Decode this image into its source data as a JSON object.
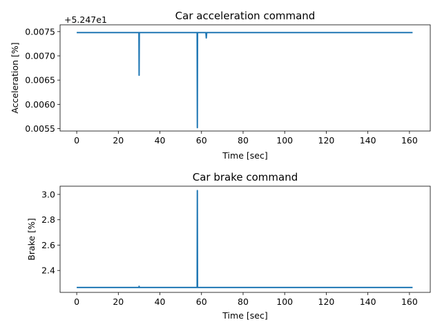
{
  "chart_data": [
    {
      "type": "line",
      "title": "Car acceleration command",
      "xlabel": "Time [sec]",
      "ylabel": "Acceleration [%]",
      "offset_label": "+5.247e1",
      "xlim": [
        -8,
        170
      ],
      "ylim": [
        0.00545,
        0.00764
      ],
      "xticks": [
        0,
        20,
        40,
        60,
        80,
        100,
        120,
        140,
        160
      ],
      "yticks": [
        0.0055,
        0.006,
        0.0065,
        0.007,
        0.0075
      ],
      "ytick_labels": [
        "0.0055",
        "0.0060",
        "0.0065",
        "0.0070",
        "0.0075"
      ],
      "grid": false,
      "color": "#1f77b4",
      "series": [
        {
          "x": [
            0,
            29.9,
            30.0,
            30.1,
            30.2,
            57.9,
            58.0,
            58.1,
            58.2,
            62.1,
            62.3,
            62.5,
            62.7,
            161.5
          ],
          "y": [
            0.00748,
            0.00748,
            0.0066,
            0.00748,
            0.00748,
            0.00748,
            0.00552,
            0.00748,
            0.00748,
            0.00748,
            0.00737,
            0.00748,
            0.00748,
            0.00748
          ]
        }
      ]
    },
    {
      "type": "line",
      "title": "Car brake command",
      "xlabel": "Time [sec]",
      "ylabel": "Brake [%]",
      "xlim": [
        -8,
        170
      ],
      "ylim": [
        2.227,
        3.065
      ],
      "xticks": [
        0,
        20,
        40,
        60,
        80,
        100,
        120,
        140,
        160
      ],
      "yticks": [
        2.4,
        2.6,
        2.8,
        3.0
      ],
      "ytick_labels": [
        "2.4",
        "2.6",
        "2.8",
        "3.0"
      ],
      "grid": false,
      "color": "#1f77b4",
      "series": [
        {
          "x": [
            0,
            29.9,
            30.0,
            30.1,
            57.9,
            58.0,
            58.1,
            161.5
          ],
          "y": [
            2.266,
            2.266,
            2.275,
            2.266,
            2.266,
            3.03,
            2.266,
            2.266
          ]
        }
      ]
    }
  ]
}
